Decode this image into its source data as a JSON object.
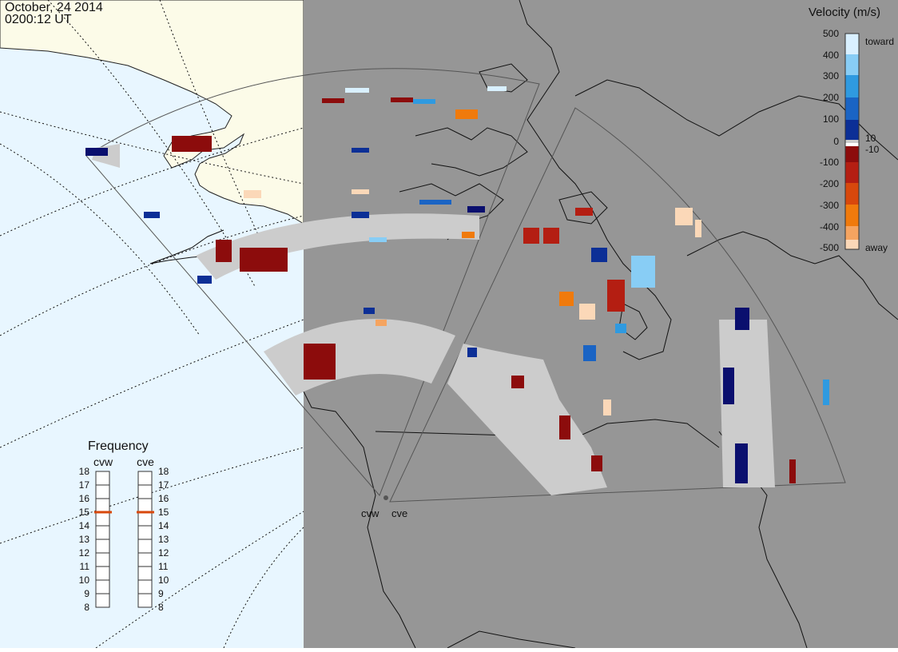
{
  "header": {
    "date": "October, 24 2014",
    "time": "0200:12 UT"
  },
  "velocity_scale": {
    "title": "Velocity (m/s)",
    "toward_label": "toward",
    "away_label": "away",
    "ticks": [
      "500",
      "400",
      "300",
      "200",
      "100",
      "10",
      "0",
      "-10",
      "-100",
      "-200",
      "-300",
      "-400",
      "-500"
    ],
    "colors": [
      "#d9f0ff",
      "#88cdf5",
      "#2f9ae0",
      "#1a64c4",
      "#0c2f96",
      "#0a0f6e",
      "#ffffff",
      "#6e0c0c",
      "#8c0c0c",
      "#b41e12",
      "#d8480c",
      "#f07a0c",
      "#f5a460",
      "#fbd8b8"
    ]
  },
  "frequency_panel": {
    "title": "Frequency",
    "radars": [
      "cvw",
      "cve"
    ],
    "ticks": [
      "18",
      "17",
      "16",
      "15",
      "14",
      "13",
      "12",
      "11",
      "10",
      "9",
      "8"
    ],
    "cvw_value": 15,
    "cve_value": 15,
    "marker_color": "#d8480c"
  },
  "radar_sites": [
    {
      "name": "cvw"
    },
    {
      "name": "cve"
    }
  ],
  "colors": {
    "land": "#969696",
    "ocean": "#e8f6ff",
    "foreign_land": "#fcfbe8",
    "ground_scatter": "#cccccc",
    "coastline": "#111111"
  }
}
